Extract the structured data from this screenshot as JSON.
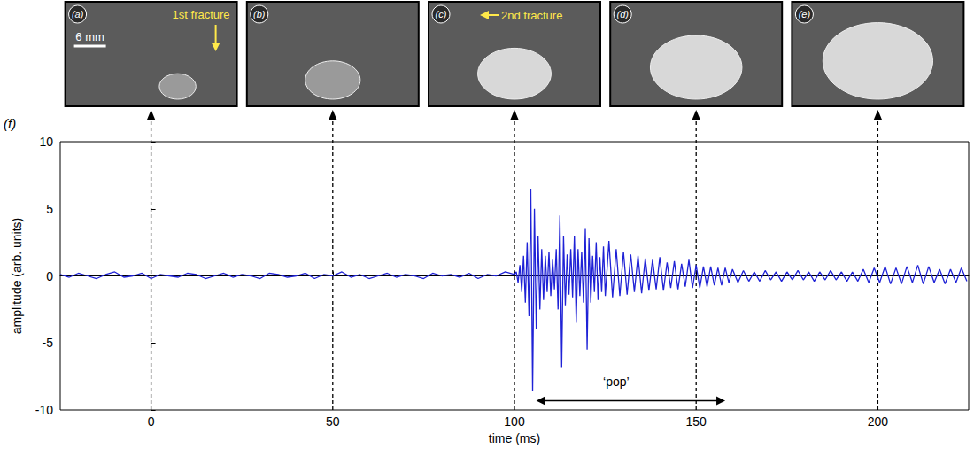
{
  "panels": [
    {
      "label": "(a)",
      "time": 0,
      "annotation": "1st fracture",
      "scale_bar": "6 mm"
    },
    {
      "label": "(b)",
      "time": 50
    },
    {
      "label": "(c)",
      "time": 100,
      "annotation": "2nd fracture"
    },
    {
      "label": "(d)",
      "time": 150
    },
    {
      "label": "(e)",
      "time": 200
    }
  ],
  "chart_data": {
    "type": "line",
    "panel_label": "(f)",
    "x_label": "time (ms)",
    "y_label": "amplitude (arb. units)",
    "color": "#1f22d6",
    "xlim": [
      -25,
      225
    ],
    "xticks": [
      0,
      50,
      100,
      150,
      200
    ],
    "ylim": [
      -10,
      10
    ],
    "yticks": [
      -10,
      -5,
      0,
      5,
      10
    ],
    "grid": false,
    "x": [
      -25,
      -22.5,
      -20,
      -17.5,
      -15,
      -12.5,
      -10,
      -7.5,
      -5,
      -2.5,
      0,
      2.5,
      5,
      7.5,
      10,
      12.5,
      15,
      17.5,
      20,
      22.5,
      25,
      27.5,
      30,
      32.5,
      35,
      37.5,
      40,
      42.5,
      45,
      47.5,
      50,
      52.5,
      55,
      57.5,
      60,
      62.5,
      65,
      67.5,
      70,
      72.5,
      75,
      77.5,
      80,
      82.5,
      85,
      87.5,
      90,
      92.5,
      95,
      97.5,
      100,
      100.5,
      101,
      101.5,
      102,
      102.5,
      103,
      103.5,
      104,
      104.5,
      105,
      105.5,
      106,
      106.5,
      107,
      107.5,
      108,
      108.5,
      109,
      109.5,
      110,
      110.5,
      111,
      111.5,
      112,
      112.5,
      113,
      113.5,
      114,
      114.5,
      115,
      115.5,
      116,
      116.5,
      117,
      117.5,
      118,
      118.5,
      119,
      119.5,
      120,
      120.5,
      121,
      121.5,
      122,
      122.5,
      123,
      123.5,
      124,
      124.5,
      125,
      126,
      127,
      128,
      129,
      130,
      131,
      132,
      133,
      134,
      135,
      136,
      137,
      138,
      139,
      140,
      141,
      142,
      143,
      144,
      145,
      146,
      147,
      148,
      149,
      150,
      151,
      152,
      153,
      154,
      155,
      156,
      157,
      158,
      159,
      160,
      161.5,
      163,
      164.5,
      166,
      167.5,
      169,
      170.5,
      172,
      173.5,
      175,
      176.5,
      178,
      179.5,
      181,
      182.5,
      184,
      185.5,
      187,
      188.5,
      190,
      191.5,
      193,
      194.5,
      196,
      197.5,
      199,
      200.5,
      202,
      203.5,
      205,
      206.5,
      208,
      209.5,
      211,
      212.5,
      214,
      215.5,
      217,
      218.5,
      220,
      221.5,
      223,
      224.5
    ],
    "values": [
      0.1,
      -0.1,
      0.2,
      0.0,
      -0.2,
      0.1,
      0.3,
      -0.1,
      0.0,
      0.2,
      -0.2,
      0.1,
      0.0,
      -0.1,
      0.2,
      0.1,
      -0.2,
      0.0,
      0.2,
      -0.1,
      0.1,
      0.0,
      -0.2,
      0.2,
      0.1,
      -0.1,
      0.0,
      0.2,
      -0.2,
      0.1,
      0.0,
      0.3,
      -0.1,
      0.1,
      -0.2,
      0.0,
      0.2,
      -0.1,
      0.1,
      0.0,
      -0.2,
      0.2,
      0.0,
      0.1,
      -0.1,
      0.2,
      -0.2,
      0.1,
      0.0,
      0.3,
      0.1,
      0.3,
      -0.5,
      0.8,
      -1.2,
      1.5,
      -2.0,
      2.5,
      -3.0,
      6.5,
      -8.6,
      5.0,
      -4.0,
      3.0,
      -2.5,
      2.0,
      -1.8,
      1.5,
      -1.2,
      1.8,
      -1.5,
      1.2,
      -1.0,
      2.0,
      -2.5,
      4.5,
      -6.8,
      3.0,
      -2.2,
      1.6,
      -1.4,
      2.0,
      -1.6,
      3.0,
      -3.5,
      2.0,
      -1.5,
      1.8,
      -2.0,
      3.5,
      -5.5,
      2.8,
      -2.0,
      1.5,
      -1.2,
      2.5,
      -1.8,
      1.4,
      -1.2,
      2.2,
      -1.5,
      2.6,
      -1.6,
      2.0,
      -1.5,
      1.8,
      -1.4,
      1.6,
      -1.2,
      1.5,
      -1.3,
      1.3,
      -1.1,
      1.2,
      -1.0,
      1.4,
      -1.1,
      1.0,
      -0.9,
      1.1,
      -1.0,
      0.9,
      -0.8,
      1.2,
      -0.9,
      0.8,
      -0.9,
      0.7,
      -0.8,
      0.7,
      -0.7,
      0.6,
      -0.7,
      0.6,
      -0.5,
      0.5,
      -0.5,
      0.4,
      -0.4,
      0.3,
      -0.4,
      0.4,
      -0.3,
      0.3,
      -0.4,
      0.3,
      -0.3,
      0.4,
      -0.3,
      0.3,
      -0.4,
      0.3,
      -0.3,
      0.4,
      -0.3,
      0.3,
      -0.4,
      0.3,
      -0.4,
      0.5,
      -0.5,
      0.6,
      -0.5,
      0.7,
      -0.6,
      0.6,
      -0.6,
      0.7,
      -0.5,
      0.8,
      -0.6,
      0.7,
      -0.5,
      0.5,
      -0.6,
      0.5,
      -0.5,
      0.6,
      -0.4
    ],
    "annotations": [
      {
        "text": "‘pop’",
        "x": 128,
        "y": -7.9,
        "arrow": {
          "x": [
            106,
            158
          ],
          "y": -9.3
        }
      }
    ]
  }
}
